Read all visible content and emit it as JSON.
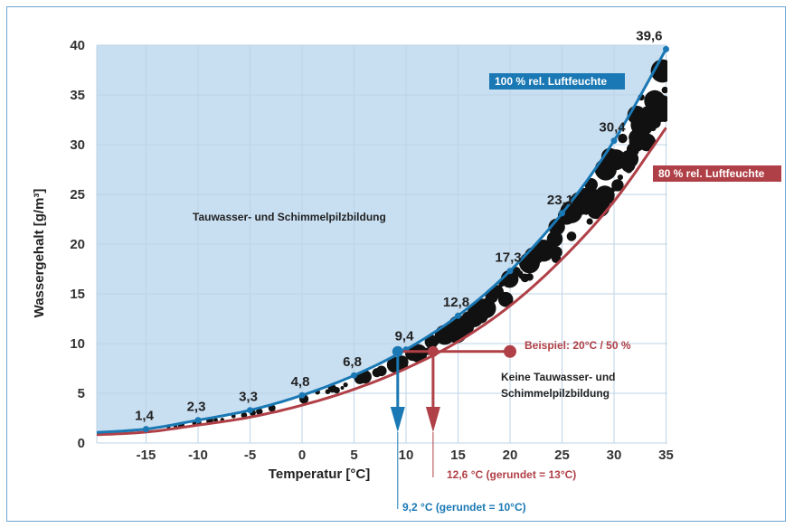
{
  "chart_data": {
    "type": "line",
    "xlabel": "Temperatur [°C]",
    "ylabel": "Wassergehalt [g/m³]",
    "xlim": [
      -20,
      35
    ],
    "ylim": [
      0,
      40
    ],
    "x_ticks": [
      -15,
      -10,
      -5,
      0,
      5,
      10,
      15,
      20,
      25,
      30,
      35
    ],
    "x_tick_labels": [
      "-15",
      "-10",
      "-5",
      "0",
      "5",
      "10",
      "15",
      "20",
      "25",
      "30",
      "35"
    ],
    "y_ticks": [
      0,
      5,
      10,
      15,
      20,
      25,
      30,
      35,
      40
    ],
    "y_tick_labels": [
      "0",
      "5",
      "10",
      "15",
      "20",
      "25",
      "30",
      "35",
      "40"
    ],
    "grid": true,
    "series": [
      {
        "name": "100 % rel. Luftfeuchte",
        "color": "#1a78b4",
        "x": [
          -15,
          -10,
          -5,
          0,
          5,
          10,
          15,
          20,
          25,
          30,
          35
        ],
        "values": [
          1.4,
          2.3,
          3.3,
          4.8,
          6.8,
          9.4,
          12.8,
          17.3,
          23.1,
          30.4,
          39.6
        ],
        "labels": [
          "1,4",
          "2,3",
          "3,3",
          "4,8",
          "6,8",
          "9,4",
          "12,8",
          "17,3",
          "23,1",
          "30,4",
          "39,6"
        ]
      },
      {
        "name": "80 % rel. Luftfeuchte",
        "color": "#b04047",
        "x": [
          -15,
          -10,
          -5,
          0,
          5,
          10,
          15,
          20,
          25,
          30,
          35
        ],
        "values": [
          1.1,
          1.8,
          2.6,
          3.8,
          5.4,
          7.5,
          10.2,
          13.8,
          18.5,
          24.3,
          31.7
        ]
      }
    ],
    "annotations": {
      "zone_above": "Tauwasser- und Schimmelpilzbildung",
      "zone_below_line1": "Keine Tauwasser- und",
      "zone_below_line2": "Schimmelpilzbildung",
      "example_label": "Beispiel: 20°C / 50 %",
      "example_point": {
        "x": 20,
        "y": 9.2
      },
      "dewpoint_blue": {
        "x": 9.2,
        "y": 9.2,
        "label": "9,2 °C (gerundet = 10°C)"
      },
      "dewpoint_red": {
        "x": 12.6,
        "y": 9.2,
        "label": "12,6 °C (gerundet = 13°C)"
      }
    }
  }
}
